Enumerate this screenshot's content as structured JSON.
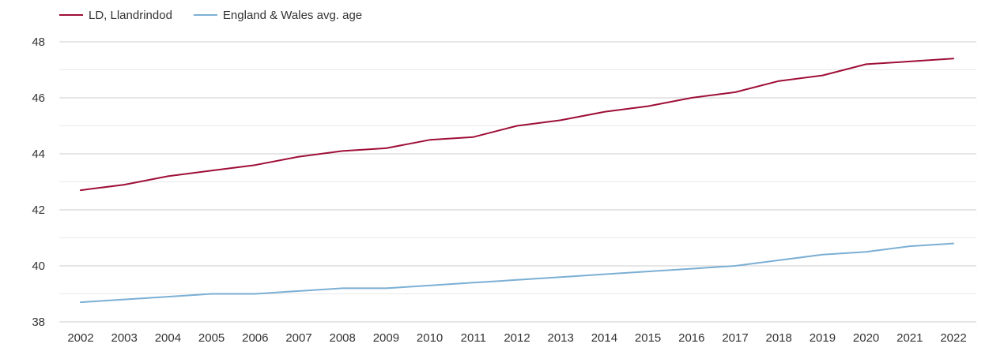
{
  "chart_data": {
    "type": "line",
    "title": "",
    "xlabel": "",
    "ylabel": "",
    "x": [
      2002,
      2003,
      2004,
      2005,
      2006,
      2007,
      2008,
      2009,
      2010,
      2011,
      2012,
      2013,
      2014,
      2015,
      2016,
      2017,
      2018,
      2019,
      2020,
      2021,
      2022
    ],
    "ylim": [
      38,
      48
    ],
    "yticks": [
      38,
      40,
      42,
      44,
      46,
      48
    ],
    "grid": true,
    "legend_position": "top-left",
    "series": [
      {
        "name": "LD, Llandrindod",
        "color": "#9e0e35",
        "values": [
          42.7,
          42.9,
          43.2,
          43.4,
          43.6,
          43.9,
          44.1,
          44.2,
          44.5,
          44.6,
          45.0,
          45.2,
          45.5,
          45.7,
          46.0,
          46.2,
          46.6,
          46.8,
          47.2,
          47.3,
          47.4
        ]
      },
      {
        "name": "England & Wales avg. age",
        "color": "#7bafd4",
        "values": [
          38.7,
          38.8,
          38.9,
          39.0,
          39.0,
          39.1,
          39.2,
          39.2,
          39.3,
          39.4,
          39.5,
          39.6,
          39.7,
          39.8,
          39.9,
          40.0,
          40.2,
          40.4,
          40.5,
          40.7,
          40.8
        ]
      }
    ]
  }
}
